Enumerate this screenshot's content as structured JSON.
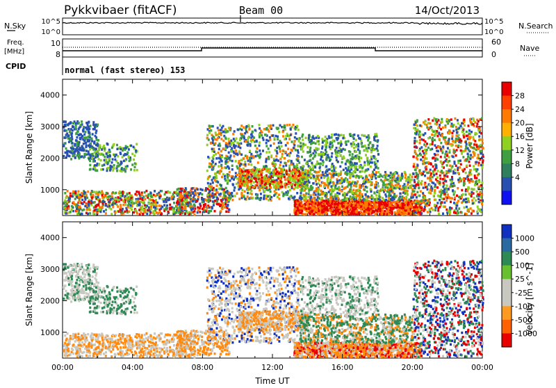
{
  "header": {
    "station": "Pykkvibaer (fitACF)",
    "beam": "Beam 00",
    "date": "14/Oct/2013"
  },
  "top_panels": {
    "nsky_label": "N.Sky",
    "nsky_ticks": [
      "10^5",
      "10^0"
    ],
    "nsearch_label": "N.Search",
    "nsearch_ticks": [
      "10^5",
      "10^0"
    ],
    "freq_label_1": "Freq.",
    "freq_label_2": "[MHz]",
    "freq_ticks": [
      "10",
      "8"
    ],
    "nave_label": "Nave",
    "nave_ticks": [
      "60",
      "0"
    ],
    "cpid_label": "CPID",
    "cpid_text": "normal (fast stereo) 153"
  },
  "chart_data": [
    {
      "type": "heatmap",
      "title": "",
      "ylabel": "Slant Range [km]",
      "xlabel": "",
      "x_range": [
        "00:00",
        "24:00"
      ],
      "ylim": [
        180,
        4500
      ],
      "yticks": [
        "4000",
        "3000",
        "2000",
        "1000"
      ],
      "colorbar": {
        "label": "Power [dB]",
        "ticks": [
          "28",
          "24",
          "20",
          "16",
          "12",
          "8",
          "4"
        ],
        "colors": [
          "#e80000",
          "#ff4000",
          "#ff7a00",
          "#ffb000",
          "#90d020",
          "#3f9f40",
          "#2f7f5f",
          "#2850b0",
          "#1010f0"
        ]
      },
      "colors": {
        "high": "#e80000",
        "mid_high": "#ff7a00",
        "mid": "#90d020",
        "low_mid": "#3f9f40",
        "low": "#2850b0"
      }
    },
    {
      "type": "heatmap",
      "title": "",
      "ylabel": "Slant Range [km]",
      "xlabel": "Time UT",
      "x_range": [
        "00:00",
        "24:00"
      ],
      "xticks": [
        "00:00",
        "04:00",
        "08:00",
        "12:00",
        "16:00",
        "20:00",
        "00:00"
      ],
      "ylim": [
        180,
        4500
      ],
      "yticks": [
        "4000",
        "3000",
        "2000",
        "1000"
      ],
      "colorbar": {
        "label": "Velocity [m s^-1]",
        "ticks": [
          "1000",
          "500",
          "100",
          "25",
          "-25",
          "-100",
          "-500",
          "-1000"
        ],
        "colors": [
          "#1030c0",
          "#2a6aa0",
          "#2e8a55",
          "#68c030",
          "#c8c8c0",
          "#c8c8c0",
          "#ff9a20",
          "#ff6000",
          "#e80000"
        ]
      },
      "colors": {
        "toward_fast": "#1030c0",
        "toward": "#2e8a55",
        "slow": "#c8c8c0",
        "away": "#ff8a10",
        "away_fast": "#e80000"
      }
    }
  ]
}
